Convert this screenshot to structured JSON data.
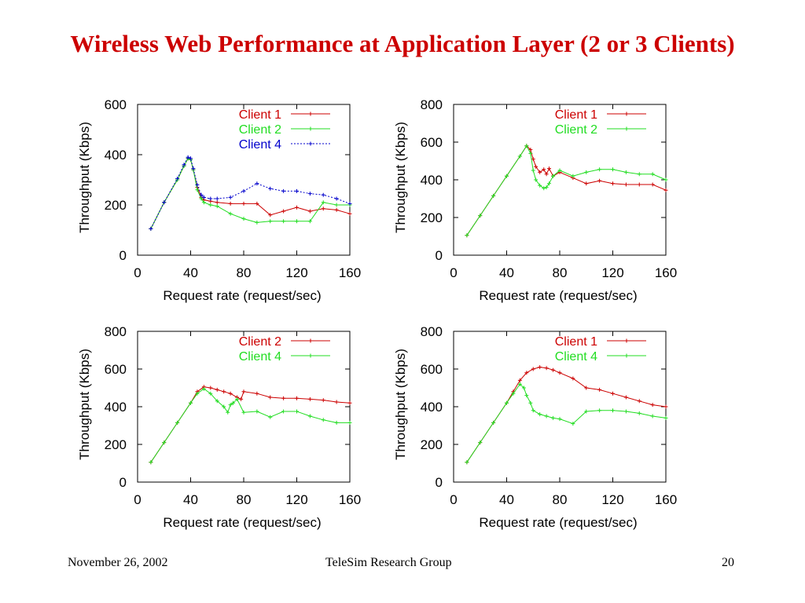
{
  "slide": {
    "title": "Wireless Web Performance at Application Layer (2 or 3 Clients)"
  },
  "footer": {
    "date": "November 26, 2002",
    "group": "TeleSim Research Group",
    "page_number": "20"
  },
  "colors": {
    "title": "#cc0000",
    "red": "#cc0000",
    "green": "#22dd22",
    "blue": "#0000cc"
  },
  "chart_data": [
    {
      "type": "line",
      "xlabel": "Request rate (request/sec)",
      "ylabel": "Throughput (Kbps)",
      "xlim": [
        0,
        160
      ],
      "ylim": [
        0,
        600
      ],
      "xticks": [
        0,
        40,
        80,
        120,
        160
      ],
      "yticks": [
        0,
        200,
        400,
        600
      ],
      "grid": false,
      "legend_position": "top-right",
      "series": [
        {
          "name": "Client 1",
          "color": "#cc0000",
          "x": [
            10,
            20,
            30,
            35,
            38,
            40,
            42,
            45,
            48,
            50,
            55,
            60,
            70,
            80,
            90,
            100,
            110,
            120,
            130,
            140,
            150,
            160
          ],
          "y": [
            105,
            210,
            300,
            355,
            385,
            380,
            340,
            270,
            230,
            220,
            215,
            210,
            205,
            205,
            205,
            160,
            175,
            190,
            175,
            185,
            180,
            165
          ]
        },
        {
          "name": "Client 2",
          "color": "#22dd22",
          "x": [
            10,
            20,
            30,
            35,
            38,
            40,
            42,
            45,
            48,
            50,
            55,
            60,
            70,
            80,
            90,
            100,
            110,
            120,
            130,
            140,
            150,
            160
          ],
          "y": [
            105,
            210,
            300,
            355,
            385,
            380,
            340,
            260,
            225,
            210,
            200,
            195,
            165,
            145,
            130,
            135,
            135,
            135,
            135,
            210,
            200,
            200
          ]
        },
        {
          "name": "Client 4",
          "color": "#0000cc",
          "x": [
            10,
            20,
            30,
            35,
            38,
            40,
            42,
            45,
            48,
            50,
            55,
            60,
            70,
            80,
            90,
            100,
            110,
            120,
            130,
            140,
            150,
            160
          ],
          "y": [
            105,
            210,
            305,
            360,
            390,
            385,
            345,
            280,
            240,
            230,
            225,
            225,
            230,
            255,
            285,
            265,
            255,
            255,
            245,
            240,
            225,
            205
          ]
        }
      ]
    },
    {
      "type": "line",
      "xlabel": "Request rate (request/sec)",
      "ylabel": "Throughput (Kbps)",
      "xlim": [
        0,
        160
      ],
      "ylim": [
        0,
        800
      ],
      "xticks": [
        0,
        40,
        80,
        120,
        160
      ],
      "yticks": [
        0,
        200,
        400,
        600,
        800
      ],
      "grid": false,
      "legend_position": "top-right",
      "series": [
        {
          "name": "Client 1",
          "color": "#cc0000",
          "x": [
            10,
            20,
            30,
            40,
            50,
            55,
            58,
            60,
            62,
            65,
            68,
            70,
            72,
            75,
            80,
            90,
            100,
            110,
            120,
            130,
            140,
            150,
            160
          ],
          "y": [
            105,
            210,
            315,
            420,
            525,
            580,
            560,
            510,
            470,
            440,
            455,
            430,
            460,
            420,
            440,
            410,
            380,
            395,
            380,
            375,
            375,
            375,
            345
          ]
        },
        {
          "name": "Client 2",
          "color": "#22dd22",
          "x": [
            10,
            20,
            30,
            40,
            50,
            55,
            58,
            60,
            62,
            65,
            68,
            70,
            72,
            75,
            80,
            90,
            100,
            110,
            120,
            130,
            140,
            150,
            160
          ],
          "y": [
            105,
            210,
            315,
            420,
            525,
            580,
            540,
            450,
            400,
            370,
            355,
            360,
            380,
            420,
            450,
            420,
            440,
            455,
            455,
            440,
            430,
            430,
            400
          ]
        }
      ]
    },
    {
      "type": "line",
      "xlabel": "Request rate (request/sec)",
      "ylabel": "Throughput (Kbps)",
      "xlim": [
        0,
        160
      ],
      "ylim": [
        0,
        800
      ],
      "xticks": [
        0,
        40,
        80,
        120,
        160
      ],
      "yticks": [
        0,
        200,
        400,
        600,
        800
      ],
      "grid": false,
      "legend_position": "top-right",
      "series": [
        {
          "name": "Client 2",
          "color": "#cc0000",
          "x": [
            10,
            20,
            30,
            40,
            45,
            50,
            55,
            60,
            65,
            70,
            75,
            78,
            80,
            90,
            100,
            110,
            120,
            130,
            140,
            150,
            160
          ],
          "y": [
            105,
            210,
            315,
            420,
            480,
            505,
            500,
            490,
            480,
            470,
            450,
            440,
            480,
            470,
            450,
            445,
            445,
            440,
            435,
            425,
            420
          ]
        },
        {
          "name": "Client 4",
          "color": "#22dd22",
          "x": [
            10,
            20,
            30,
            40,
            45,
            50,
            55,
            60,
            65,
            68,
            70,
            72,
            75,
            80,
            90,
            100,
            110,
            120,
            130,
            140,
            150,
            160
          ],
          "y": [
            105,
            210,
            315,
            420,
            470,
            495,
            470,
            430,
            400,
            370,
            410,
            420,
            440,
            370,
            375,
            345,
            375,
            375,
            350,
            330,
            315,
            315
          ]
        }
      ]
    },
    {
      "type": "line",
      "xlabel": "Request rate (request/sec)",
      "ylabel": "Throughput (Kbps)",
      "xlim": [
        0,
        160
      ],
      "ylim": [
        0,
        800
      ],
      "xticks": [
        0,
        40,
        80,
        120,
        160
      ],
      "yticks": [
        0,
        200,
        400,
        600,
        800
      ],
      "grid": false,
      "legend_position": "top-right",
      "series": [
        {
          "name": "Client 1",
          "color": "#cc0000",
          "x": [
            10,
            20,
            30,
            40,
            45,
            50,
            55,
            60,
            65,
            70,
            75,
            80,
            90,
            100,
            110,
            120,
            130,
            140,
            150,
            160
          ],
          "y": [
            105,
            210,
            315,
            420,
            480,
            540,
            580,
            600,
            610,
            605,
            595,
            580,
            550,
            500,
            490,
            470,
            450,
            430,
            410,
            400
          ]
        },
        {
          "name": "Client 4",
          "color": "#22dd22",
          "x": [
            10,
            20,
            30,
            40,
            45,
            50,
            53,
            55,
            58,
            60,
            65,
            70,
            75,
            80,
            90,
            100,
            110,
            120,
            130,
            140,
            150,
            160
          ],
          "y": [
            105,
            210,
            315,
            420,
            470,
            520,
            500,
            460,
            420,
            380,
            360,
            350,
            340,
            335,
            310,
            375,
            380,
            380,
            375,
            365,
            350,
            340
          ]
        }
      ]
    }
  ]
}
